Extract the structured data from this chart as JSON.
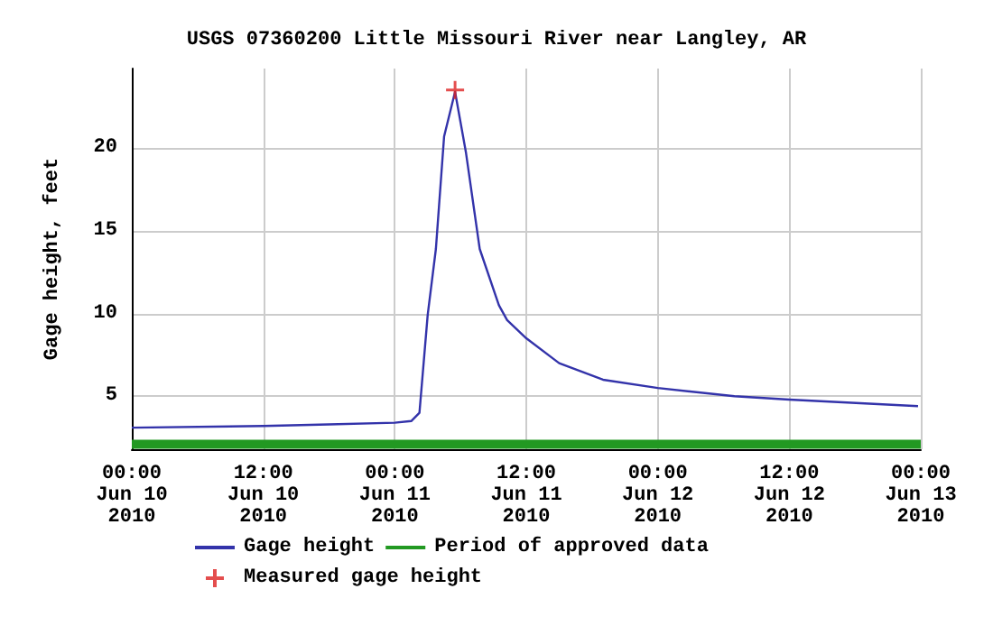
{
  "chart_data": {
    "type": "line",
    "title": "USGS 07360200 Little Missouri River near Langley, AR",
    "ylabel": "Gage height, feet",
    "xlim": [
      "2010-06-10T00:00",
      "2010-06-13T00:00"
    ],
    "xticks": [
      {
        "value": "2010-06-10T00:00",
        "label": "00:00\nJun 10\n2010"
      },
      {
        "value": "2010-06-10T12:00",
        "label": "12:00\nJun 10\n2010"
      },
      {
        "value": "2010-06-11T00:00",
        "label": "00:00\nJun 11\n2010"
      },
      {
        "value": "2010-06-11T12:00",
        "label": "12:00\nJun 11\n2010"
      },
      {
        "value": "2010-06-12T00:00",
        "label": "00:00\nJun 12\n2010"
      },
      {
        "value": "2010-06-12T12:00",
        "label": "12:00\nJun 12\n2010"
      },
      {
        "value": "2010-06-13T00:00",
        "label": "00:00\nJun 13\n2010"
      }
    ],
    "ylim": [
      1.8,
      24.8
    ],
    "yticks": [
      5,
      10,
      15,
      20
    ],
    "grid": true,
    "legend": "bottom",
    "marker": "none",
    "line_style": "solid",
    "series": [
      {
        "name": "Gage height",
        "color": "#3333aa",
        "x": [
          "2010-06-10T00:00",
          "2010-06-10T12:00",
          "2010-06-10T18:00",
          "2010-06-11T00:00",
          "2010-06-11T01:30",
          "2010-06-11T02:15",
          "2010-06-11T03:00",
          "2010-06-11T03:45",
          "2010-06-11T04:30",
          "2010-06-11T05:30",
          "2010-06-11T06:30",
          "2010-06-11T07:45",
          "2010-06-11T09:30",
          "2010-06-11T10:15",
          "2010-06-11T12:00",
          "2010-06-11T15:00",
          "2010-06-11T19:00",
          "2010-06-12T00:00",
          "2010-06-12T07:00",
          "2010-06-12T12:00",
          "2010-06-12T23:45"
        ],
        "values": [
          3.1,
          3.2,
          3.3,
          3.4,
          3.5,
          4.0,
          9.9,
          13.9,
          20.7,
          23.4,
          19.7,
          13.9,
          10.5,
          9.6,
          8.5,
          7.0,
          6.0,
          5.5,
          5.0,
          4.8,
          4.4
        ]
      },
      {
        "name": "Period of approved data",
        "color": "#229922",
        "x": [
          "2010-06-10T00:00",
          "2010-06-13T00:00"
        ],
        "values": [
          2.1,
          2.1
        ]
      },
      {
        "name": "Measured gage height",
        "type": "scatter",
        "marker": "cross",
        "color": "#dd2222",
        "x": [
          "2010-06-11T05:30"
        ],
        "values": [
          23.5
        ]
      }
    ]
  }
}
